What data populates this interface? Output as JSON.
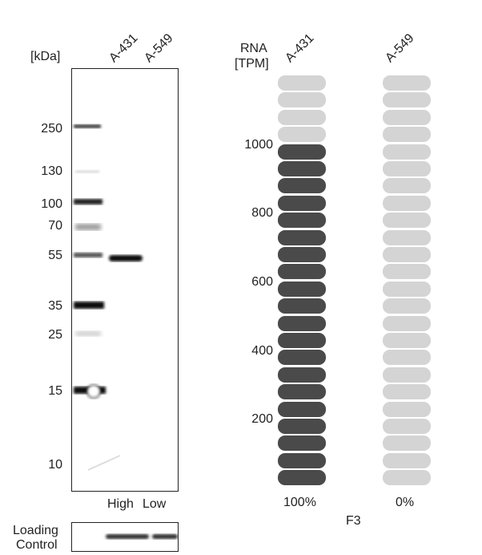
{
  "western_blot": {
    "unit_label": "[kDa]",
    "lane_labels": [
      "A-431",
      "A-549"
    ],
    "level_labels": [
      "High",
      "Low"
    ],
    "markers": [
      "250",
      "130",
      "100",
      "70",
      "55",
      "35",
      "25",
      "15",
      "10"
    ],
    "loading_control_label_1": "Loading",
    "loading_control_label_2": "Control"
  },
  "rna": {
    "axis_title_1": "RNA",
    "axis_title_2": "[TPM]",
    "cell_lines": [
      "A-431",
      "A-549"
    ],
    "ticks": [
      "1000",
      "800",
      "600",
      "400",
      "200"
    ],
    "percent_labels": [
      "100%",
      "0%"
    ],
    "gene": "F3",
    "colors": {
      "filled": "#4a4a4a",
      "empty": "#d4d4d4"
    }
  },
  "chart_data": {
    "type": "bar",
    "title": "",
    "ylabel": "RNA [TPM]",
    "categories": [
      "A-431",
      "A-549"
    ],
    "values": [
      100,
      0
    ],
    "value_unit": "%",
    "filled_segments": [
      20,
      0
    ],
    "total_segments": 24
  }
}
